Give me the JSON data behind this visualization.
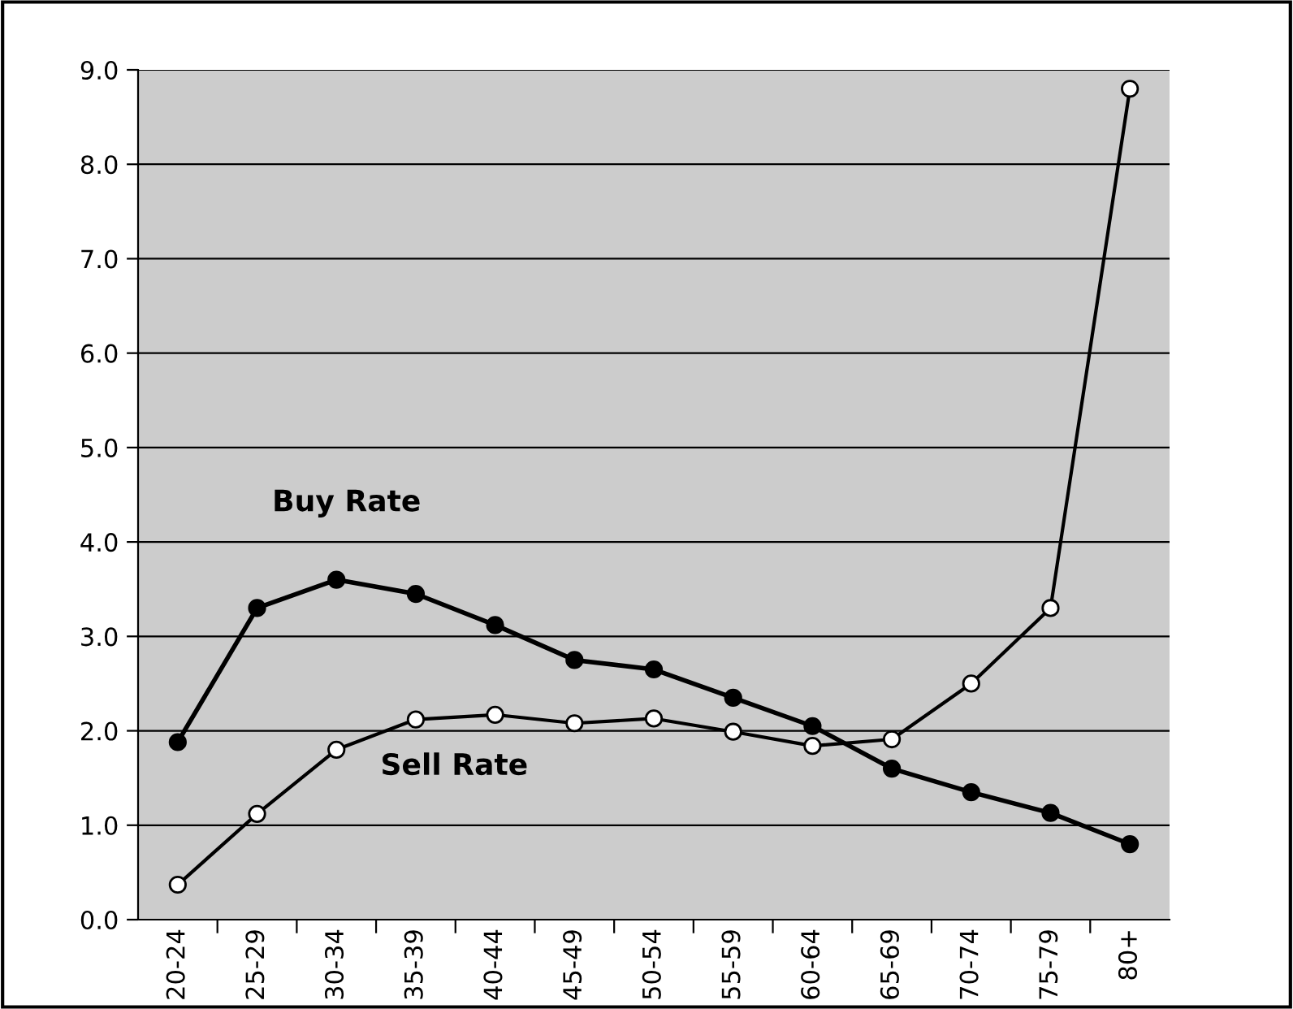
{
  "chart_data": {
    "type": "line",
    "categories": [
      "20-24",
      "25-29",
      "30-34",
      "35-39",
      "40-44",
      "45-49",
      "50-54",
      "55-59",
      "60-64",
      "65-69",
      "70-74",
      "75-79",
      "80+"
    ],
    "series": [
      {
        "name": "Buy Rate",
        "color": "#000000",
        "values": [
          1.88,
          3.3,
          3.6,
          3.45,
          3.12,
          2.75,
          2.65,
          2.35,
          2.05,
          1.6,
          1.35,
          1.13,
          0.8
        ]
      },
      {
        "name": "Sell Rate",
        "color": "#000000",
        "values": [
          0.37,
          1.12,
          1.8,
          2.12,
          2.17,
          2.08,
          2.13,
          1.99,
          1.84,
          1.91,
          2.5,
          3.3,
          8.8
        ]
      }
    ],
    "ylim": [
      0,
      9
    ],
    "yticks": [
      {
        "value": 0,
        "label": "0.0"
      },
      {
        "value": 1,
        "label": "1.0"
      },
      {
        "value": 2,
        "label": "2.0"
      },
      {
        "value": 3,
        "label": "3.0"
      },
      {
        "value": 4,
        "label": "4.0"
      },
      {
        "value": 5,
        "label": "5.0"
      },
      {
        "value": 6,
        "label": "6.0"
      },
      {
        "value": 7,
        "label": "7.0"
      },
      {
        "value": 8,
        "label": "8.0"
      },
      {
        "value": 9,
        "label": "9.0"
      }
    ],
    "grid": "y",
    "marker": "circle",
    "line_style": "solid",
    "legend": false
  }
}
